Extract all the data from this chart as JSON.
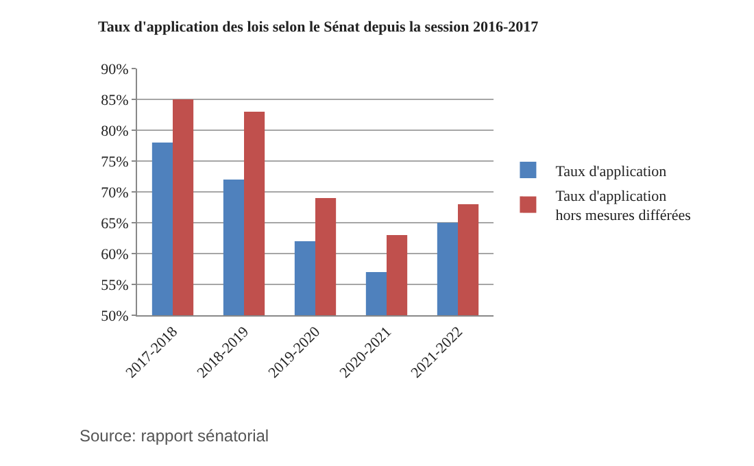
{
  "chart_data": {
    "type": "bar",
    "title": "Taux d'application des lois selon le Sénat depuis la session 2016-2017",
    "categories": [
      "2017-2018",
      "2018-2019",
      "2019-2020",
      "2020-2021",
      "2021-2022"
    ],
    "series": [
      {
        "name": "Taux d'application",
        "color": "#4f81bd",
        "values": [
          78,
          72,
          62,
          57,
          65
        ]
      },
      {
        "name": "Taux d'application hors mesures différées",
        "color": "#c0504d",
        "values": [
          85,
          83,
          69,
          63,
          68
        ]
      }
    ],
    "ylim": [
      50,
      90
    ],
    "yticks": [
      {
        "value": 50,
        "label": "50%"
      },
      {
        "value": 55,
        "label": "55%"
      },
      {
        "value": 60,
        "label": "60%"
      },
      {
        "value": 65,
        "label": "65%"
      },
      {
        "value": 70,
        "label": "70%"
      },
      {
        "value": 75,
        "label": "75%"
      },
      {
        "value": 80,
        "label": "80%"
      },
      {
        "value": 85,
        "label": "85%"
      },
      {
        "value": 90,
        "label": "90%"
      }
    ],
    "grid": "y",
    "legend": "right",
    "annotations": [
      "Source: rapport sénatorial"
    ]
  }
}
